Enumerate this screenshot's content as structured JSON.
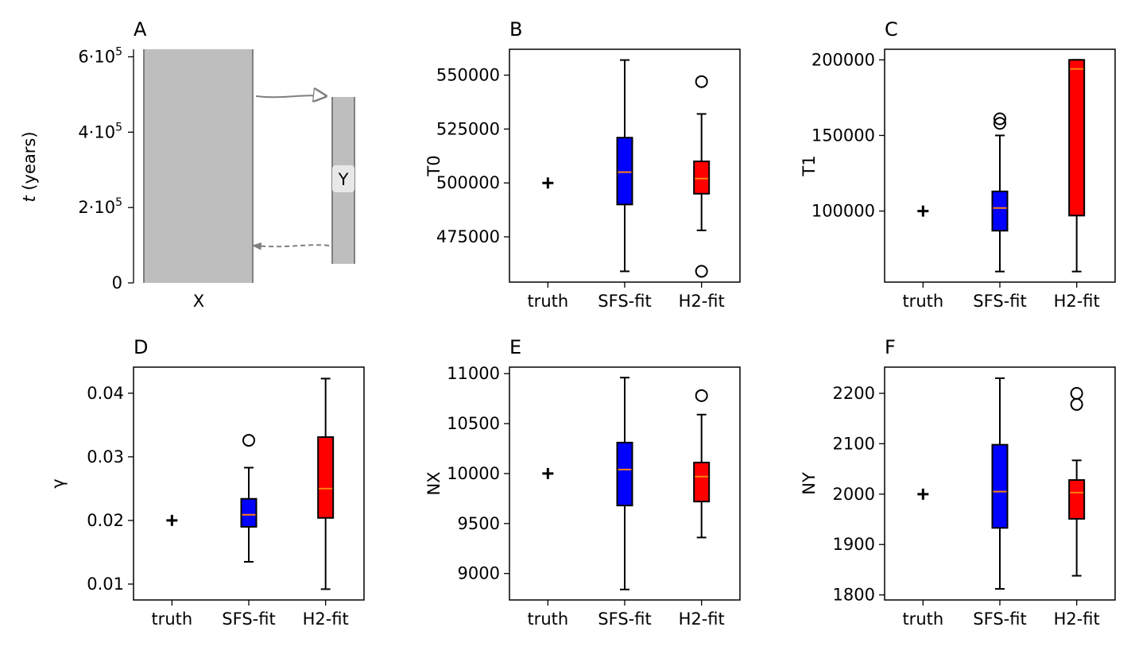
{
  "demography_panel": {
    "panel_label": "A",
    "ylabel": "t (years)",
    "ylabel_italic": "t",
    "ylabel_rest": " (years)",
    "yticks": [
      {
        "value": 0,
        "label": "0"
      },
      {
        "value": 200000,
        "label": "2·10",
        "exp": "5"
      },
      {
        "value": 400000,
        "label": "4·10",
        "exp": "5"
      },
      {
        "value": 600000,
        "label": "6·10",
        "exp": "5"
      }
    ],
    "ylim": [
      0,
      620000
    ],
    "populations": [
      {
        "name": "X",
        "start_time": 620000,
        "end_time": 0
      },
      {
        "name": "Y",
        "start_time": 500000,
        "end_time": 50000
      }
    ],
    "x_tick": "X",
    "box_label": "Y",
    "colors": {
      "population": "#bebebe",
      "edge": "#808080"
    }
  },
  "chart_data": [
    {
      "panel_label": "B",
      "type": "box",
      "ylabel": "T0",
      "categories": [
        "truth",
        "SFS-fit",
        "H2-fit"
      ],
      "truth": 500000,
      "boxes": [
        {
          "q1": 490000,
          "median": 505000,
          "q3": 521000,
          "whisker_low": 459000,
          "whisker_high": 557000,
          "outliers": [],
          "color": "#0000ff"
        },
        {
          "q1": 495000,
          "median": 502000,
          "q3": 510000,
          "whisker_low": 478000,
          "whisker_high": 532000,
          "outliers": [
            547000,
            459000
          ],
          "color": "#ff0000"
        }
      ],
      "ylim": [
        454000,
        562000
      ],
      "yticks": [
        475000,
        500000,
        525000,
        550000
      ],
      "yticklabels": [
        "475000",
        "500000",
        "525000",
        "550000"
      ]
    },
    {
      "panel_label": "C",
      "type": "box",
      "ylabel": "T1",
      "categories": [
        "truth",
        "SFS-fit",
        "H2-fit"
      ],
      "truth": 100000,
      "boxes": [
        {
          "q1": 87000,
          "median": 102000,
          "q3": 113000,
          "whisker_low": 60000,
          "whisker_high": 150000,
          "outliers": [
            161000,
            158000
          ],
          "color": "#0000ff"
        },
        {
          "q1": 97000,
          "median": 194000,
          "q3": 200000,
          "whisker_low": 60000,
          "whisker_high": 200000,
          "outliers": [],
          "color": "#ff0000"
        }
      ],
      "ylim": [
        53000,
        207000
      ],
      "yticks": [
        100000,
        150000,
        200000
      ],
      "yticklabels": [
        "100000",
        "150000",
        "200000"
      ]
    },
    {
      "panel_label": "D",
      "type": "box",
      "ylabel": "γ",
      "categories": [
        "truth",
        "SFS-fit",
        "H2-fit"
      ],
      "truth": 0.02,
      "boxes": [
        {
          "q1": 0.019,
          "median": 0.0209,
          "q3": 0.0234,
          "whisker_low": 0.0135,
          "whisker_high": 0.0283,
          "outliers": [
            0.0326
          ],
          "color": "#0000ff"
        },
        {
          "q1": 0.0204,
          "median": 0.025,
          "q3": 0.0331,
          "whisker_low": 0.0092,
          "whisker_high": 0.0423,
          "outliers": [],
          "color": "#ff0000"
        }
      ],
      "ylim": [
        0.0075,
        0.0441
      ],
      "yticks": [
        0.01,
        0.02,
        0.03,
        0.04
      ],
      "yticklabels": [
        "0.01",
        "0.02",
        "0.03",
        "0.04"
      ]
    },
    {
      "panel_label": "E",
      "type": "box",
      "ylabel": "NX",
      "categories": [
        "truth",
        "SFS-fit",
        "H2-fit"
      ],
      "truth": 10000,
      "boxes": [
        {
          "q1": 9680,
          "median": 10040,
          "q3": 10310,
          "whisker_low": 8840,
          "whisker_high": 10960,
          "outliers": [],
          "color": "#0000ff"
        },
        {
          "q1": 9720,
          "median": 9970,
          "q3": 10110,
          "whisker_low": 9360,
          "whisker_high": 10590,
          "outliers": [
            10780
          ],
          "color": "#ff0000"
        }
      ],
      "ylim": [
        8735,
        11065
      ],
      "yticks": [
        9000,
        9500,
        10000,
        10500,
        11000
      ],
      "yticklabels": [
        "9000",
        "9500",
        "10000",
        "10500",
        "11000"
      ]
    },
    {
      "panel_label": "F",
      "type": "box",
      "ylabel": "NY",
      "categories": [
        "truth",
        "SFS-fit",
        "H2-fit"
      ],
      "truth": 2000,
      "boxes": [
        {
          "q1": 1933,
          "median": 2005,
          "q3": 2098,
          "whisker_low": 1812,
          "whisker_high": 2230,
          "outliers": [],
          "color": "#0000ff"
        },
        {
          "q1": 1951,
          "median": 2003,
          "q3": 2028,
          "whisker_low": 1838,
          "whisker_high": 2067,
          "outliers": [
            2200,
            2178
          ],
          "color": "#ff0000"
        }
      ],
      "ylim": [
        1790,
        2252
      ],
      "yticks": [
        1800,
        1900,
        2000,
        2100,
        2200
      ],
      "yticklabels": [
        "1800",
        "1900",
        "2000",
        "2100",
        "2200"
      ]
    }
  ]
}
